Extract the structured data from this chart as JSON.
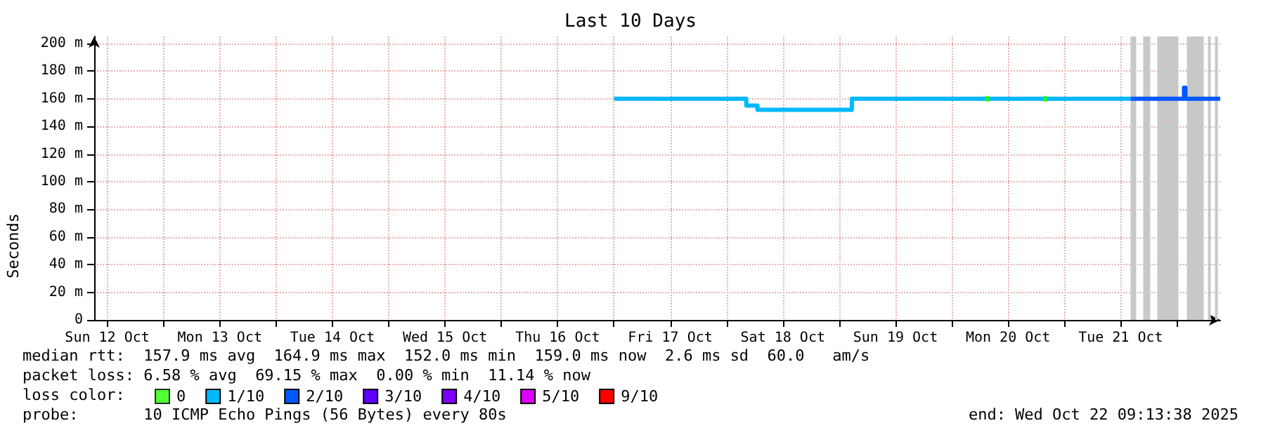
{
  "chart_data": {
    "type": "step",
    "title": "Last 10 Days",
    "ylabel": "Seconds",
    "legend_title": "loss color:",
    "xlim": [
      "2025-10-12T09:13",
      "2025-10-22T09:13"
    ],
    "xticks": [
      {
        "value": "2025-10-12T12:00",
        "label": "Sun 12 Oct"
      },
      {
        "value": "2025-10-13T00:00",
        "label": null
      },
      {
        "value": "2025-10-13T12:00",
        "label": "Mon 13 Oct"
      },
      {
        "value": "2025-10-14T00:00",
        "label": null
      },
      {
        "value": "2025-10-14T12:00",
        "label": "Tue 14 Oct"
      },
      {
        "value": "2025-10-15T00:00",
        "label": null
      },
      {
        "value": "2025-10-15T12:00",
        "label": "Wed 15 Oct"
      },
      {
        "value": "2025-10-16T00:00",
        "label": null
      },
      {
        "value": "2025-10-16T12:00",
        "label": "Thu 16 Oct"
      },
      {
        "value": "2025-10-17T00:00",
        "label": null
      },
      {
        "value": "2025-10-17T12:00",
        "label": "Fri 17 Oct"
      },
      {
        "value": "2025-10-18T00:00",
        "label": null
      },
      {
        "value": "2025-10-18T12:00",
        "label": "Sat 18 Oct"
      },
      {
        "value": "2025-10-19T00:00",
        "label": null
      },
      {
        "value": "2025-10-19T12:00",
        "label": "Sun 19 Oct"
      },
      {
        "value": "2025-10-20T00:00",
        "label": null
      },
      {
        "value": "2025-10-20T12:00",
        "label": "Mon 20 Oct"
      },
      {
        "value": "2025-10-21T00:00",
        "label": null
      },
      {
        "value": "2025-10-21T12:00",
        "label": "Tue 21 Oct"
      },
      {
        "value": "2025-10-22T00:00",
        "label": null
      }
    ],
    "ylim": [
      0,
      205
    ],
    "yticks": [
      0,
      {
        "value": 20,
        "label": "20 m"
      },
      {
        "value": 40,
        "label": "40 m"
      },
      {
        "value": 60,
        "label": "60 m"
      },
      {
        "value": 80,
        "label": "80 m"
      },
      {
        "value": 100,
        "label": "100 m"
      },
      {
        "value": 120,
        "label": "120 m"
      },
      {
        "value": 140,
        "label": "140 m"
      },
      {
        "value": 160,
        "label": "160 m"
      },
      {
        "value": 180,
        "label": "180 m"
      },
      {
        "value": 200,
        "label": "200 m"
      }
    ],
    "grid": true,
    "legend": "bottom",
    "series": [
      {
        "name": "0",
        "type": "scatter",
        "color": "#26ff00",
        "x": [
          "2025-10-20T07:36",
          "2025-10-20T19:54"
        ],
        "values": [
          160,
          160
        ]
      },
      {
        "name": "1/10",
        "color": "#00b8ff",
        "x": [
          "2025-10-17T00:00",
          "2025-10-18T04:12",
          "2025-10-18T06:36",
          "2025-10-19T02:42",
          "2025-10-21T14:06"
        ],
        "values": [
          160,
          155,
          152,
          160,
          160
        ]
      },
      {
        "name": "2/10",
        "color": "#0059ff",
        "x": [
          "2025-10-21T14:06",
          "2025-10-22T01:30",
          "2025-10-22T01:48",
          "2025-10-22T09:13"
        ],
        "values": [
          160,
          168,
          160,
          160
        ]
      },
      {
        "name": "3/10",
        "color": "#5e00ff"
      },
      {
        "name": "4/10",
        "color": "#7e00ff"
      },
      {
        "name": "5/10",
        "color": "#dd00ff"
      },
      {
        "name": "9/10",
        "color": "#ff0000"
      }
    ],
    "bands": [
      {
        "axis": "x",
        "from": "2025-10-21T14:06",
        "to": "2025-10-21T15:18",
        "color": "#c8c8c8"
      },
      {
        "axis": "x",
        "from": "2025-10-21T16:48",
        "to": "2025-10-21T18:18",
        "color": "#c8c8c8"
      },
      {
        "axis": "x",
        "from": "2025-10-21T19:48",
        "to": "2025-10-22T00:18",
        "color": "#c8c8c8"
      },
      {
        "axis": "x",
        "from": "2025-10-22T02:06",
        "to": "2025-10-22T05:42",
        "color": "#c8c8c8"
      },
      {
        "axis": "x",
        "from": "2025-10-22T06:36",
        "to": "2025-10-22T07:12",
        "color": "#c8c8c8"
      },
      {
        "axis": "x",
        "from": "2025-10-22T08:06",
        "to": "2025-10-22T08:42",
        "color": "#c8c8c8"
      }
    ],
    "annotations": [
      "median rtt:  157.9 ms avg  164.9 ms max  152.0 ms min  159.0 ms now  2.6 ms sd  60.0   am/s",
      "packet loss: 6.58 % avg  69.15 % max  0.00 % min  11.14 % now",
      "probe:       10 ICMP Echo Pings (56 Bytes) every 80s",
      "end: Wed Oct 22 09:13:38 2025"
    ]
  }
}
